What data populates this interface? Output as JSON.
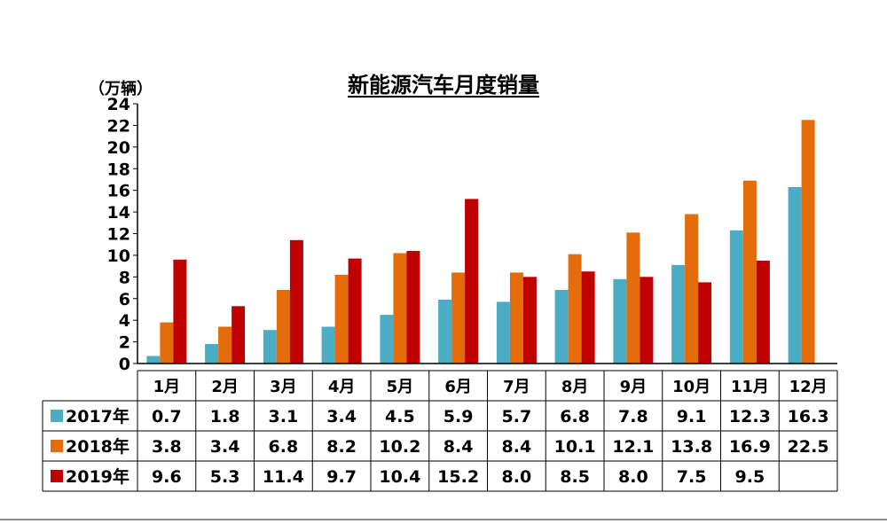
{
  "chart_data": {
    "type": "bar",
    "title": "新能源汽车月度销量",
    "ylabel": "（万辆）",
    "ylim": [
      0,
      24
    ],
    "yticks": [
      0,
      2,
      4,
      6,
      8,
      10,
      12,
      14,
      16,
      18,
      20,
      22,
      24
    ],
    "categories": [
      "1月",
      "2月",
      "3月",
      "4月",
      "5月",
      "6月",
      "7月",
      "8月",
      "9月",
      "10月",
      "11月",
      "12月"
    ],
    "series": [
      {
        "name": "2017年",
        "color": "#4bacc6",
        "values": [
          0.7,
          1.8,
          3.1,
          3.4,
          4.5,
          5.9,
          5.7,
          6.8,
          7.8,
          9.1,
          12.3,
          16.3
        ],
        "labels": [
          "0.7",
          "1.8",
          "3.1",
          "3.4",
          "4.5",
          "5.9",
          "5.7",
          "6.8",
          "7.8",
          "9.1",
          "12.3",
          "16.3"
        ]
      },
      {
        "name": "2018年",
        "color": "#e46c0a",
        "values": [
          3.8,
          3.4,
          6.8,
          8.2,
          10.2,
          8.4,
          8.4,
          10.1,
          12.1,
          13.8,
          16.9,
          22.5
        ],
        "labels": [
          "3.8",
          "3.4",
          "6.8",
          "8.2",
          "10.2",
          "8.4",
          "8.4",
          "10.1",
          "12.1",
          "13.8",
          "16.9",
          "22.5"
        ]
      },
      {
        "name": "2019年",
        "color": "#c00000",
        "values": [
          9.6,
          5.3,
          11.4,
          9.7,
          10.4,
          15.2,
          8.0,
          8.5,
          8.0,
          7.5,
          9.5,
          null
        ],
        "labels": [
          "9.6",
          "5.3",
          "11.4",
          "9.7",
          "10.4",
          "15.2",
          "8.0",
          "8.5",
          "8.0",
          "7.5",
          "9.5",
          ""
        ]
      }
    ],
    "grid": false,
    "legend": "data-table-left"
  }
}
